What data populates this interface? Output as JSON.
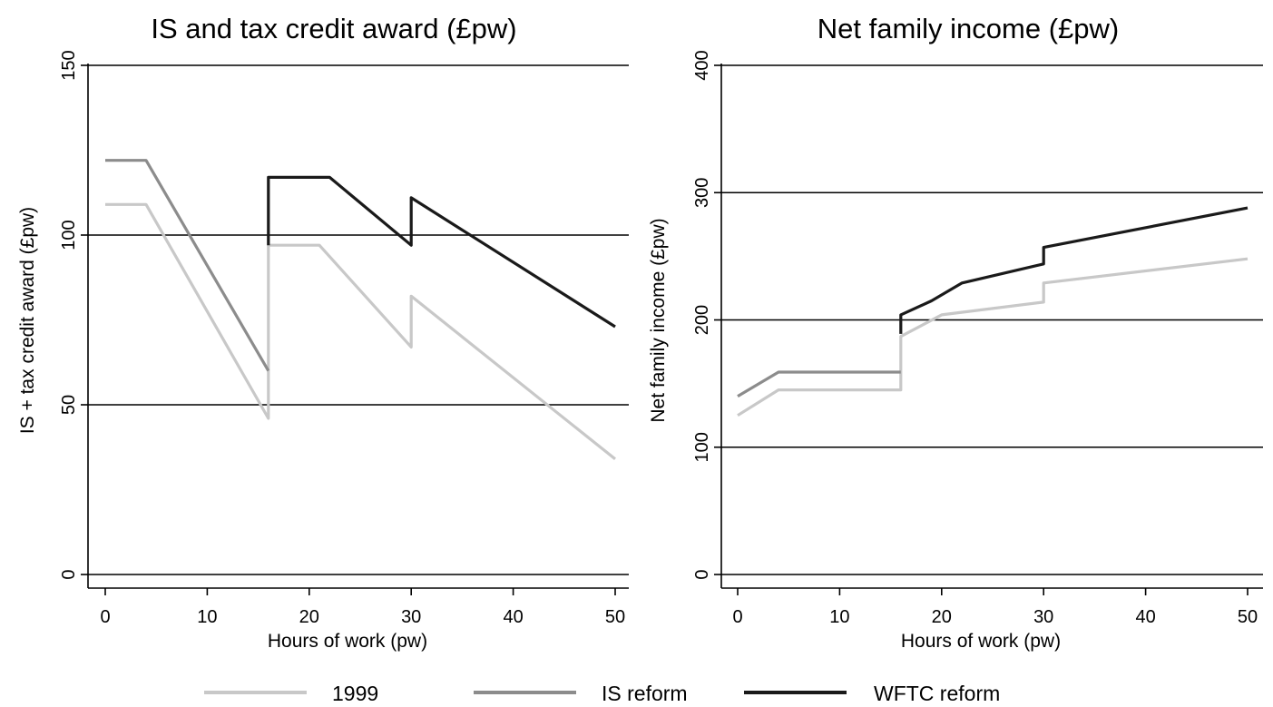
{
  "chart_data": [
    {
      "type": "line",
      "title": "IS and tax credit award (£pw)",
      "xlabel": "Hours of work (pw)",
      "ylabel": "IS + tax credit award (£pw)",
      "xlim": [
        0,
        50
      ],
      "ylim": [
        0,
        150
      ],
      "xticks": [
        0,
        10,
        20,
        30,
        40,
        50
      ],
      "yticks": [
        0,
        50,
        100,
        150
      ],
      "grid": "horizontal",
      "series": [
        {
          "name": "1999",
          "color": "#c8c8c8",
          "x": [
            0,
            4,
            16,
            16,
            21,
            30,
            30,
            50
          ],
          "y": [
            109,
            109,
            46,
            97,
            97,
            67,
            82,
            34
          ]
        },
        {
          "name": "IS reform",
          "color": "#8c8c8c",
          "x": [
            0,
            4,
            16
          ],
          "y": [
            122,
            122,
            60
          ]
        },
        {
          "name": "WFTC reform",
          "color": "#1a1a1a",
          "x": [
            16,
            16,
            22,
            30,
            30,
            50
          ],
          "y": [
            97,
            117,
            117,
            97,
            111,
            73
          ]
        }
      ]
    },
    {
      "type": "line",
      "title": "Net family income (£pw)",
      "xlabel": "Hours of work (pw)",
      "ylabel": "Net family income (£pw)",
      "xlim": [
        0,
        50
      ],
      "ylim": [
        0,
        400
      ],
      "xticks": [
        0,
        10,
        20,
        30,
        40,
        50
      ],
      "yticks": [
        0,
        100,
        200,
        300,
        400
      ],
      "grid": "horizontal",
      "series": [
        {
          "name": "1999",
          "color": "#c8c8c8",
          "x": [
            0,
            4,
            16,
            16,
            20,
            30,
            30,
            50
          ],
          "y": [
            125,
            145,
            145,
            187,
            204,
            214,
            229,
            248
          ]
        },
        {
          "name": "IS reform",
          "color": "#8c8c8c",
          "x": [
            0,
            4,
            16
          ],
          "y": [
            140,
            159,
            159
          ]
        },
        {
          "name": "WFTC reform",
          "color": "#1a1a1a",
          "x": [
            16,
            16,
            19,
            22,
            30,
            30,
            50
          ],
          "y": [
            189,
            204,
            215,
            229,
            244,
            257,
            288
          ]
        }
      ]
    }
  ],
  "legend": {
    "placement": "bottom",
    "items": [
      {
        "label": "1999",
        "color": "#c8c8c8"
      },
      {
        "label": "IS reform",
        "color": "#8c8c8c"
      },
      {
        "label": "WFTC reform",
        "color": "#1a1a1a"
      }
    ]
  }
}
